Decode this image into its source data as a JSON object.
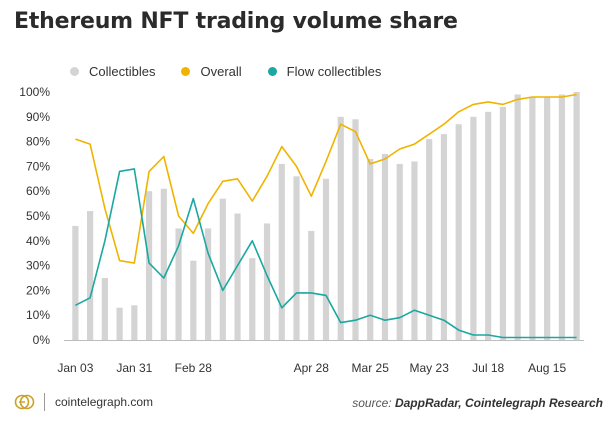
{
  "header": {
    "title": "Ethereum NFT trading volume share"
  },
  "footer": {
    "brand": "cointelegraph.com",
    "source_prefix": "source: ",
    "source_text": "DappRadar, Cointelegraph Research"
  },
  "colors": {
    "bar": "#d4d4d4",
    "overall": "#f0b400",
    "flow": "#1aa8a0",
    "axis_text": "#333333"
  },
  "chart_data": {
    "type": "bar",
    "title": "Ethereum NFT trading volume share",
    "xlabel": "",
    "ylabel": "",
    "ylim": [
      0,
      100
    ],
    "yticks": [
      "0%",
      "10%",
      "20%",
      "30%",
      "40%",
      "50%",
      "60%",
      "70%",
      "80%",
      "90%",
      "100%"
    ],
    "xticks": [
      {
        "index": 0,
        "label": "Jan 03"
      },
      {
        "index": 4,
        "label": "Jan 31"
      },
      {
        "index": 8,
        "label": "Feb 28"
      },
      {
        "index": 16,
        "label": "Apr 28"
      },
      {
        "index": 20,
        "label": "Mar 25"
      },
      {
        "index": 24,
        "label": "May 23"
      },
      {
        "index": 28,
        "label": "Jul 18"
      },
      {
        "index": 32,
        "label": "Aug 15"
      }
    ],
    "legend_position": "top-left",
    "series": [
      {
        "name": "Collectibles",
        "kind": "bar",
        "values": [
          46,
          52,
          25,
          13,
          14,
          60,
          61,
          45,
          32,
          45,
          57,
          51,
          33,
          47,
          71,
          66,
          44,
          65,
          90,
          89,
          73,
          75,
          71,
          72,
          81,
          83,
          87,
          90,
          92,
          94,
          99,
          98,
          98,
          99,
          100
        ]
      },
      {
        "name": "Overall",
        "kind": "line",
        "values": [
          81,
          79,
          53,
          32,
          31,
          68,
          74,
          50,
          43,
          55,
          64,
          65,
          56,
          66,
          78,
          70,
          58,
          72,
          87,
          84,
          71,
          73,
          77,
          79,
          83,
          87,
          92,
          95,
          96,
          95,
          97,
          98,
          98,
          98,
          99
        ]
      },
      {
        "name": "Flow collectibles",
        "kind": "line",
        "values": [
          14,
          17,
          40,
          68,
          69,
          31,
          25,
          38,
          57,
          35,
          20,
          30,
          40,
          26,
          13,
          19,
          19,
          18,
          7,
          8,
          10,
          8,
          9,
          12,
          10,
          8,
          4,
          2,
          2,
          1,
          1,
          1,
          1,
          1,
          1
        ]
      }
    ]
  }
}
